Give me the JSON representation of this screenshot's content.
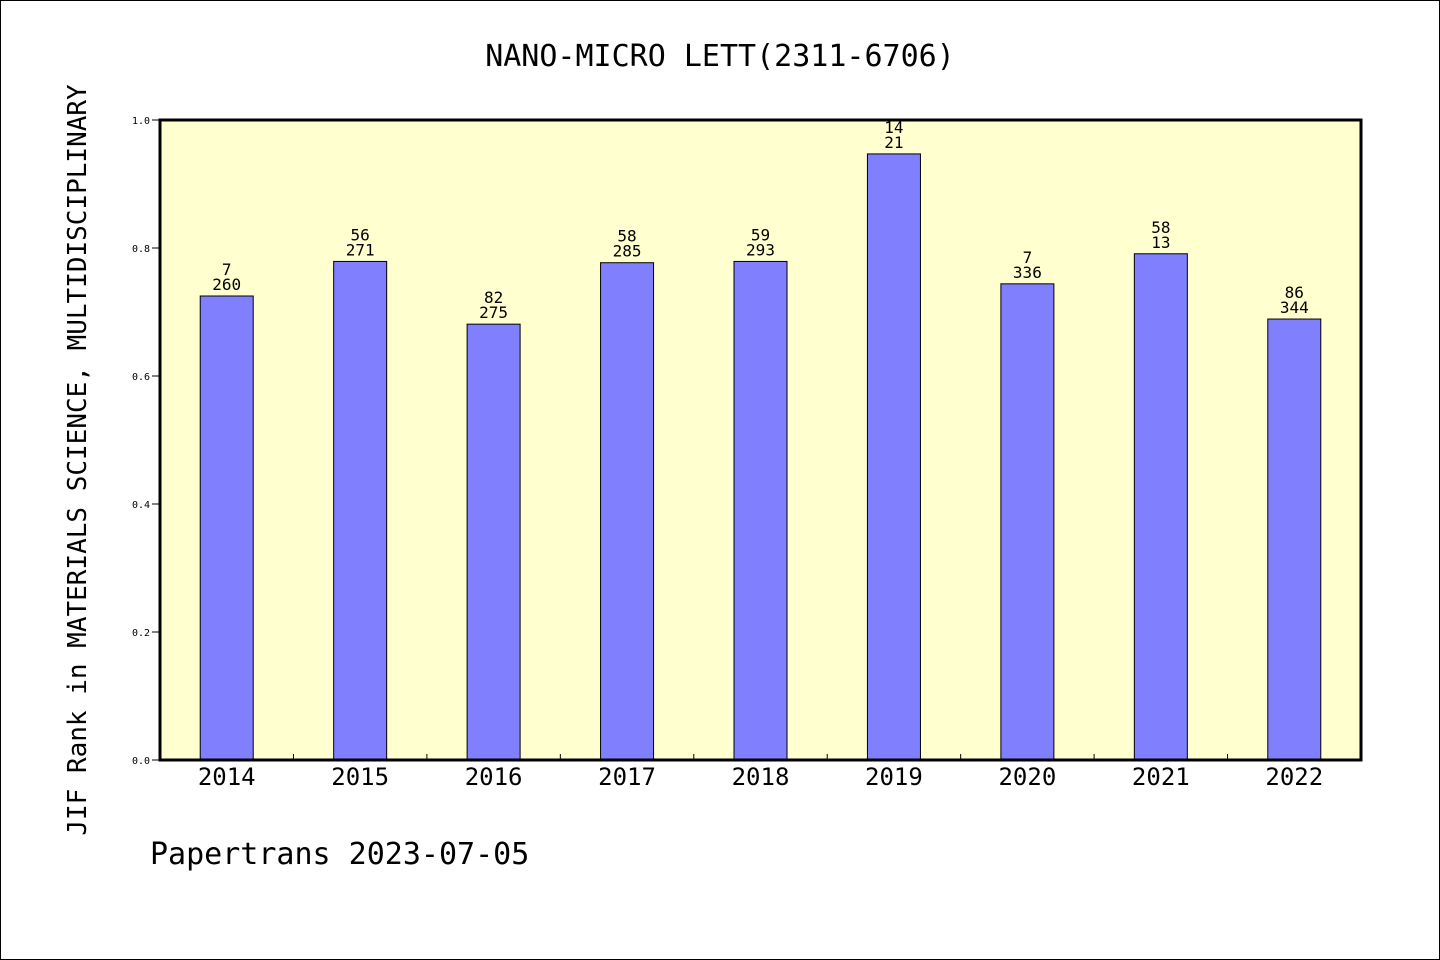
{
  "chart_data": {
    "type": "bar",
    "title": "NANO-MICRO LETT(2311-6706)",
    "xlabel": "",
    "ylabel": "JIF Rank in MATERIALS SCIENCE, MULTIDISCIPLINARY",
    "ylim": [
      0,
      1.0
    ],
    "yticks": [
      "0.0",
      "0.2",
      "0.4",
      "0.6",
      "0.8",
      "1.0"
    ],
    "categories": [
      "2014",
      "2015",
      "2016",
      "2017",
      "2018",
      "2019",
      "2020",
      "2021",
      "2022"
    ],
    "values": [
      0.725,
      0.779,
      0.681,
      0.777,
      0.779,
      0.947,
      0.744,
      0.791,
      0.689
    ],
    "labels_top": [
      "7",
      "56",
      "82",
      "58",
      "59",
      "14",
      "7",
      "58",
      "86"
    ],
    "labels_bottom": [
      "260",
      "271",
      "275",
      "285",
      "293",
      "21",
      "336",
      "13",
      "344"
    ],
    "grid": false,
    "colors": {
      "plot_background": "#ffffd0",
      "bar_fill": "#8080ff",
      "bar_stroke": "#000000"
    }
  },
  "footer": "Papertrans 2023-07-05"
}
